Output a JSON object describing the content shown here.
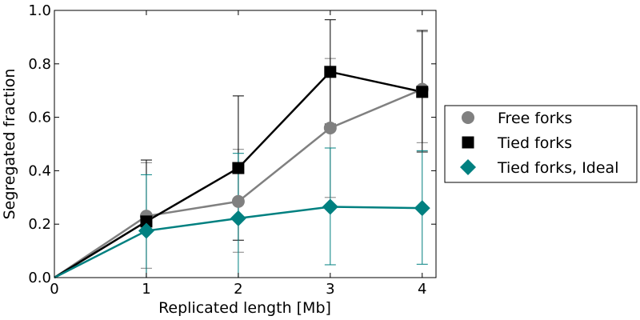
{
  "chart_data": {
    "type": "line",
    "xlabel": "Replicated length [Mb]",
    "ylabel": "Segregated fraction",
    "xlim": [
      0,
      4.15
    ],
    "ylim": [
      0,
      1.0
    ],
    "xticks": [
      0,
      1,
      2,
      3,
      4
    ],
    "yticks": [
      0.0,
      0.2,
      0.4,
      0.6,
      0.8,
      1.0
    ],
    "xtick_labels": [
      "0",
      "1",
      "2",
      "3",
      "4"
    ],
    "ytick_labels": [
      "0.0",
      "0.2",
      "0.4",
      "0.6",
      "0.8",
      "1.0"
    ],
    "grid": false,
    "legend_position": "right, outside plot",
    "series": [
      {
        "name": "Free forks",
        "marker": "circle",
        "color": "#808080",
        "x": [
          0,
          1,
          2,
          3,
          4
        ],
        "y": [
          0.0,
          0.23,
          0.285,
          0.56,
          0.705
        ],
        "err_low": [
          null,
          0.035,
          0.095,
          0.3,
          0.505
        ],
        "err_high": [
          null,
          0.43,
          0.48,
          0.82,
          0.92
        ]
      },
      {
        "name": "Tied forks",
        "marker": "square",
        "color": "#000000",
        "x": [
          0,
          1,
          2,
          3,
          4
        ],
        "y": [
          0.0,
          0.21,
          0.41,
          0.77,
          0.695
        ],
        "err_low": [
          null,
          0.0,
          0.14,
          0.575,
          0.47
        ],
        "err_high": [
          null,
          0.44,
          0.68,
          0.965,
          0.925
        ]
      },
      {
        "name": "Tied forks, Ideal",
        "marker": "diamond",
        "color": "#008080",
        "x": [
          0,
          1,
          2,
          3,
          4
        ],
        "y": [
          0.0,
          0.175,
          0.222,
          0.265,
          0.26
        ],
        "err_low": [
          null,
          0.0,
          0.0,
          0.048,
          0.05
        ],
        "err_high": [
          null,
          0.385,
          0.465,
          0.485,
          0.475
        ]
      }
    ]
  }
}
